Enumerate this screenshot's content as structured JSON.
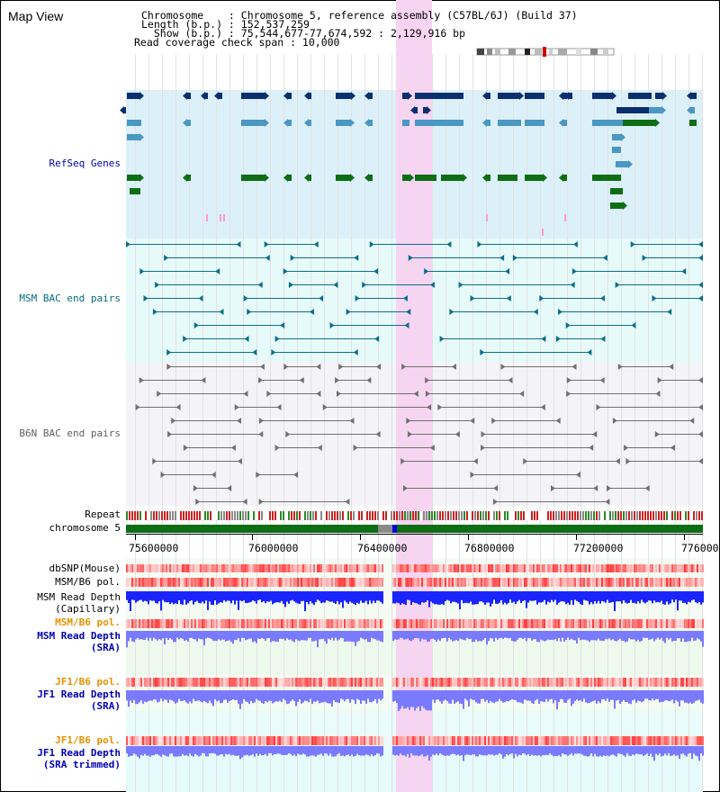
{
  "page_title": "Map View",
  "info": {
    "chromosome": "Chromosome    : Chromosome 5, reference assembly (C57BL/6J) (Build 37)",
    "length": "Length (b.p.) : 152,537,259",
    "show": "  Show (b.p.) : 75,544,677-77,674,592 : 2,129,916 bp",
    "read_coverage": "Read coverage check span : 10,000"
  },
  "track_labels": {
    "refseq": "RefSeq Genes",
    "msm_bac": "MSM BAC end pairs",
    "b6n_bac": "B6N BAC end pairs",
    "repeat": "Repeat",
    "chromosome": "chromosome 5",
    "dbsnp": "dbSNP(Mouse)",
    "msm_b6_pol_1": "MSM/B6 pol.",
    "msm_read_depth_cap_1": "MSM Read Depth",
    "msm_read_depth_cap_2": "(Capillary)",
    "msm_b6_pol_2": "MSM/B6 pol.",
    "msm_read_depth_sra_1": "MSM Read Depth",
    "msm_read_depth_sra_2": "(SRA)",
    "jf1_b6_pol_1": "JF1/B6 pol.",
    "jf1_read_depth_sra_1": "JF1 Read Depth",
    "jf1_read_depth_sra_2": "(SRA)",
    "jf1_b6_pol_2": "JF1/B6 pol.",
    "jf1_read_depth_trim_1": "JF1 Read Depth",
    "jf1_read_depth_trim_2": "(SRA trimmed)"
  },
  "axis_ticks": [
    "75600000",
    "76000000",
    "76400000",
    "76800000",
    "77200000",
    "776000"
  ],
  "colors": {
    "refseq_bg": "#dcf0fa",
    "msm_bg": "#e6fafa",
    "b6n_bg": "#f4f4f8",
    "highlight": "#f7d4f2",
    "gene_dark": "#0a2f6e",
    "gene_mid": "#4a97c2",
    "gene_green": "#0d6e14",
    "bac_teal": "#0d6e8a",
    "bac_gray": "#707070",
    "chrom_green": "#0d6e14",
    "pol_red": "#ff3a3a",
    "depth_blue": "#1a24ff",
    "depth_light": "#7a7aff",
    "orange_label": "#e69100",
    "blue_label": "#0000b4",
    "teal_label": "#006e7e"
  }
}
